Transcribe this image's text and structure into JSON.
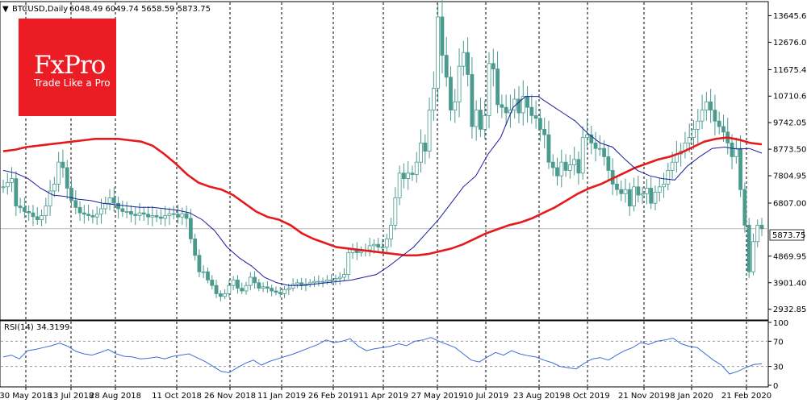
{
  "header": {
    "symbol": "BTCUSD,Daily",
    "ohlc": "6048.49 6049.74 5658.59 5873.75"
  },
  "logo": {
    "name": "FxPro",
    "tagline": "Trade Like a Pro"
  },
  "rsi_header": "RSI(14) 34.3199",
  "colors": {
    "candle": "#4a9a8e",
    "ma_fast": "#1a1aa0",
    "ma_slow": "#e41a1c",
    "rsi": "#3a6fd8",
    "grid": "#000000",
    "logo": "#ec1c24"
  },
  "chart_data": {
    "type": "line",
    "title": "BTCUSD,Daily",
    "x_ticks": [
      "30 May 2018",
      "13 Jul 2018",
      "28 Aug 2018",
      "11 Oct 2018",
      "26 Nov 2018",
      "11 Jan 2019",
      "26 Feb 2019",
      "11 Apr 2019",
      "27 May 2019",
      "10 Jul 2019",
      "23 Aug 2019",
      "8 Oct 2019",
      "21 Nov 2019",
      "8 Jan 2020",
      "21 Feb 2020"
    ],
    "y_ticks": [
      "13645.60",
      "12676.05",
      "11675.40",
      "10710.60",
      "9742.05",
      "8773.50",
      "7804.95",
      "6807.00",
      "5873.75",
      "4869.95",
      "3901.40",
      "2932.85"
    ],
    "ylim": [
      2600,
      14100
    ],
    "last_price": "5873.75",
    "rsi": {
      "label": "RSI(14) 34.3199",
      "ticks": [
        "100",
        "70",
        "30",
        "0"
      ],
      "levels": [
        70,
        30
      ],
      "ylim": [
        0,
        100
      ]
    },
    "series": [
      {
        "label": "Price",
        "values": [
          7400,
          7560,
          7700,
          6700,
          6640,
          6500,
          6450,
          6310,
          6200,
          6350,
          6700,
          7250,
          7500,
          8300,
          8100,
          7350,
          6900,
          6650,
          6450,
          6400,
          6350,
          6300,
          6400,
          6600,
          6800,
          7000,
          6800,
          6600,
          6500,
          6500,
          6400,
          6350,
          6450,
          6400,
          6300,
          6350,
          6300,
          6250,
          6350,
          6420,
          6400,
          6300,
          6420,
          6250,
          5500,
          4900,
          4300,
          4300,
          4000,
          3800,
          3500,
          3400,
          3500,
          3800,
          4000,
          3700,
          3600,
          3800,
          4100,
          3900,
          3700,
          3750,
          3700,
          3600,
          3550,
          3500,
          3650,
          3700,
          3850,
          3900,
          3800,
          3850,
          3900,
          3950,
          3950,
          3950,
          4000,
          4000,
          4050,
          4100,
          4200,
          5000,
          5100,
          5000,
          5050,
          5100,
          5250,
          5300,
          5200,
          5200,
          5500,
          6000,
          7000,
          7900,
          7700,
          7900,
          7850,
          8300,
          9000,
          8700,
          10200,
          11000,
          13600,
          12200,
          11400,
          10200,
          10500,
          11800,
          12300,
          11500,
          9600,
          10200,
          9500,
          10000,
          11900,
          11700,
          10400,
          10300,
          10100,
          10200,
          10600,
          10100,
          10700,
          10300,
          10000,
          9900,
          9500,
          9300,
          8300,
          8100,
          7800,
          8300,
          8000,
          8200,
          8400,
          7900,
          9200,
          9300,
          9000,
          8800,
          8800,
          8500,
          8000,
          7500,
          7300,
          7150,
          7300,
          6700,
          7400,
          7100,
          7150,
          7350,
          6800,
          7200,
          7400,
          7500,
          8000,
          8300,
          8600,
          8700,
          9000,
          9200,
          9500,
          9800,
          10200,
          10500,
          10200,
          9800,
          9600,
          9400,
          9000,
          8500,
          8800,
          7300,
          6000,
          4300,
          5400,
          6000,
          5873.75
        ]
      },
      {
        "label": "MA fast",
        "values": [
          8000,
          7900,
          7700,
          7350,
          7100,
          7050,
          6950,
          6900,
          6800,
          6750,
          6700,
          6650,
          6650,
          6600,
          6550,
          6450,
          6200,
          5800,
          5200,
          4800,
          4500,
          4100,
          3900,
          3800,
          3800,
          3850,
          3900,
          3950,
          4000,
          4100,
          4200,
          4500,
          4850,
          5200,
          5700,
          6200,
          6800,
          7400,
          7800,
          8600,
          9200,
          10300,
          10700,
          10700,
          10400,
          10100,
          9800,
          9350,
          9000,
          8850,
          8400,
          8000,
          7800,
          7700,
          7650,
          8150,
          8500,
          8800,
          8850,
          8780,
          8800,
          8630
        ]
      },
      {
        "label": "MA slow",
        "values": [
          8700,
          8750,
          8850,
          8900,
          8950,
          9000,
          9050,
          9100,
          9150,
          9150,
          9150,
          9100,
          9050,
          8900,
          8600,
          8250,
          7850,
          7550,
          7400,
          7300,
          7100,
          6800,
          6500,
          6300,
          6200,
          6000,
          5700,
          5500,
          5350,
          5200,
          5150,
          5100,
          5050,
          5000,
          4950,
          4900,
          4900,
          4950,
          5050,
          5150,
          5300,
          5500,
          5700,
          5850,
          6000,
          6100,
          6250,
          6450,
          6650,
          6900,
          7150,
          7350,
          7500,
          7700,
          7900,
          8100,
          8250,
          8400,
          8500,
          8650,
          8850,
          9050,
          9150,
          9200,
          9120,
          9000,
          8950
        ]
      },
      {
        "label": "RSI(14)",
        "values": [
          45,
          48,
          42,
          55,
          57,
          60,
          63,
          67,
          62,
          54,
          50,
          48,
          52,
          57,
          50,
          46,
          45,
          42,
          43,
          45,
          42,
          46,
          48,
          50,
          44,
          38,
          30,
          22,
          20,
          28,
          35,
          40,
          32,
          38,
          42,
          46,
          50,
          55,
          60,
          65,
          72,
          68,
          70,
          74,
          62,
          55,
          58,
          60,
          62,
          66,
          63,
          70,
          72,
          76,
          70,
          65,
          60,
          50,
          40,
          37,
          45,
          52,
          48,
          55,
          50,
          47,
          45,
          40,
          36,
          30,
          28,
          26,
          35,
          42,
          44,
          40,
          48,
          55,
          60,
          68,
          65,
          70,
          72,
          75,
          66,
          62,
          60,
          50,
          40,
          32,
          18,
          22,
          28,
          33,
          34.32
        ]
      }
    ]
  }
}
